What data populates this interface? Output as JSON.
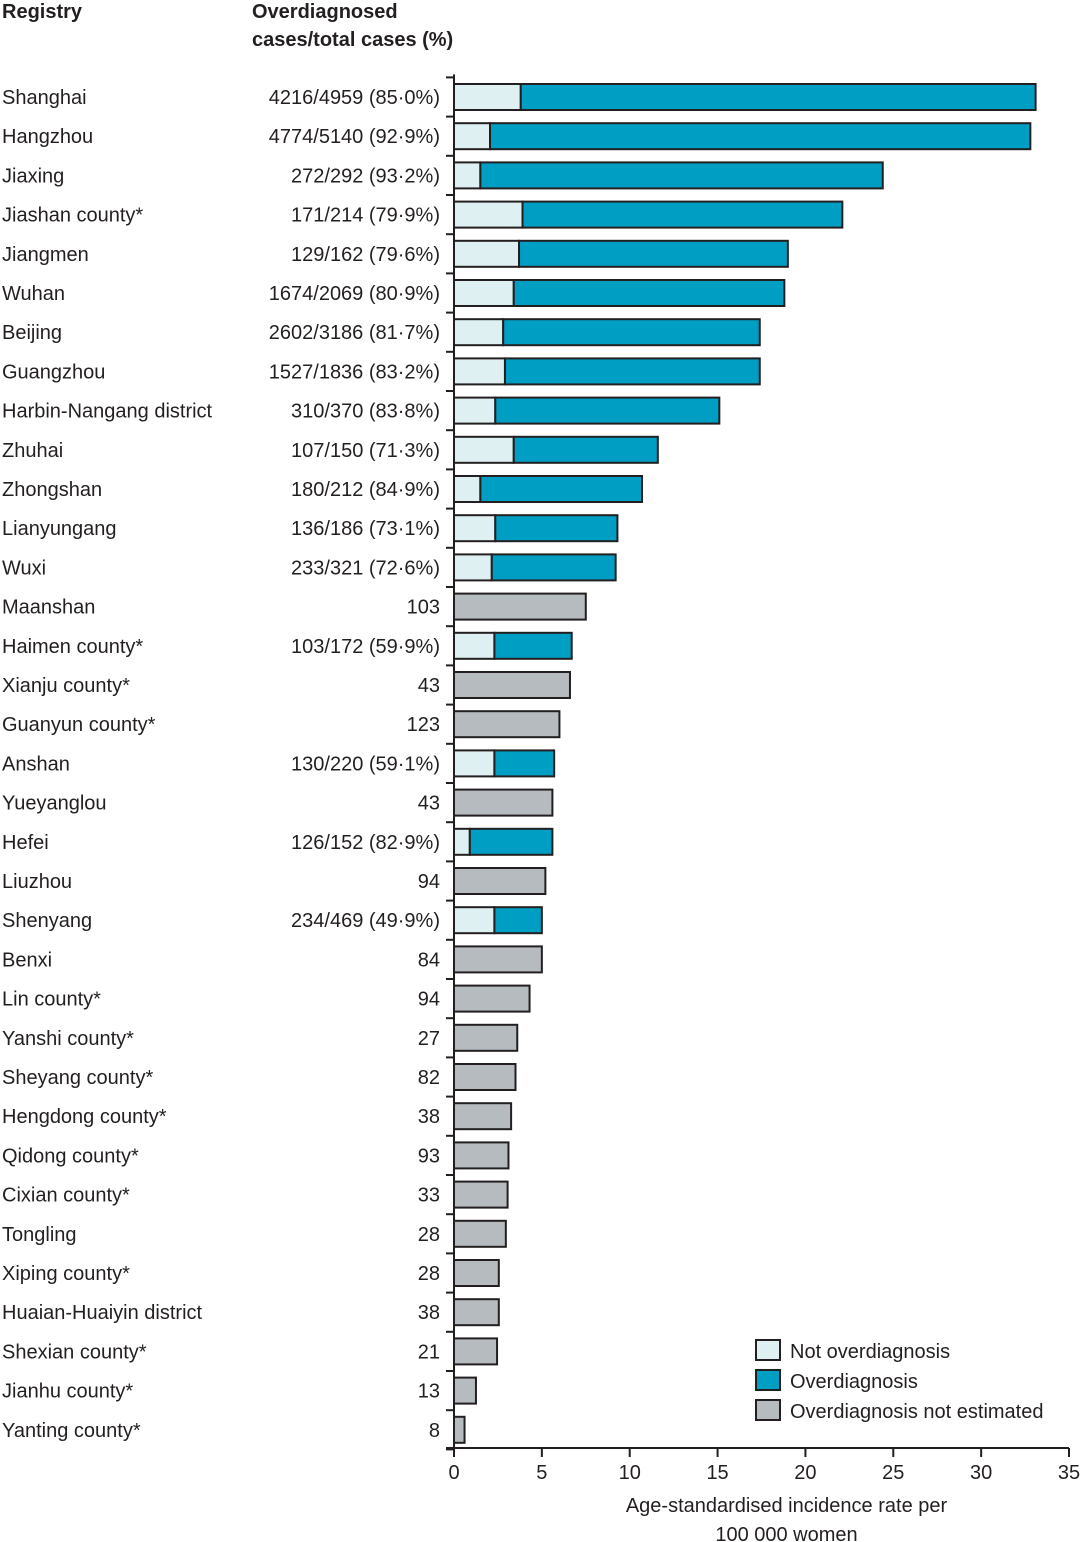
{
  "headers": {
    "registry": "Registry",
    "cases_line1": "Overdiagnosed",
    "cases_line2": "cases/total cases (%)"
  },
  "colors": {
    "not_overdiagnosis": "#dff0f3",
    "overdiagnosis": "#009ec3",
    "not_estimated": "#b6bbbf",
    "outline": "#231f20"
  },
  "chart_data": {
    "type": "bar",
    "orientation": "horizontal",
    "stacked": true,
    "title": "",
    "xlabel": "Age-standardised incidence rate per 100 000 women",
    "xlabel_lines": [
      "Age-standardised incidence rate per",
      "100 000 women"
    ],
    "ylabel": "Registry",
    "xlim": [
      0,
      35
    ],
    "xticks": [
      0,
      5,
      10,
      15,
      20,
      25,
      30,
      35
    ],
    "grid": false,
    "legend_position": "bottom-right",
    "legend": [
      {
        "key": "not_overdiagnosis",
        "label": "Not overdiagnosis"
      },
      {
        "key": "overdiagnosis",
        "label": "Overdiagnosis"
      },
      {
        "key": "not_estimated",
        "label": "Overdiagnosis not estimated"
      }
    ],
    "rows": [
      {
        "registry": "Shanghai",
        "cases": "4216/4959 (85·0%)",
        "not_overdiagnosis": 3.8,
        "overdiagnosis": 29.3,
        "not_estimated": null
      },
      {
        "registry": "Hangzhou",
        "cases": "4774/5140 (92·9%)",
        "not_overdiagnosis": 2.05,
        "overdiagnosis": 30.75,
        "not_estimated": null
      },
      {
        "registry": "Jiaxing",
        "cases": "272/292 (93·2%)",
        "not_overdiagnosis": 1.5,
        "overdiagnosis": 22.9,
        "not_estimated": null
      },
      {
        "registry": "Jiashan county*",
        "cases": "171/214 (79·9%)",
        "not_overdiagnosis": 3.9,
        "overdiagnosis": 18.2,
        "not_estimated": null
      },
      {
        "registry": "Jiangmen",
        "cases": "129/162 (79·6%)",
        "not_overdiagnosis": 3.7,
        "overdiagnosis": 15.3,
        "not_estimated": null
      },
      {
        "registry": "Wuhan",
        "cases": "1674/2069 (80·9%)",
        "not_overdiagnosis": 3.4,
        "overdiagnosis": 15.4,
        "not_estimated": null
      },
      {
        "registry": "Beijing",
        "cases": "2602/3186 (81·7%)",
        "not_overdiagnosis": 2.8,
        "overdiagnosis": 14.6,
        "not_estimated": null
      },
      {
        "registry": "Guangzhou",
        "cases": "1527/1836 (83·2%)",
        "not_overdiagnosis": 2.9,
        "overdiagnosis": 14.5,
        "not_estimated": null
      },
      {
        "registry": "Harbin-Nangang district",
        "cases": "310/370 (83·8%)",
        "not_overdiagnosis": 2.35,
        "overdiagnosis": 12.75,
        "not_estimated": null
      },
      {
        "registry": "Zhuhai",
        "cases": "107/150 (71·3%)",
        "not_overdiagnosis": 3.4,
        "overdiagnosis": 8.2,
        "not_estimated": null
      },
      {
        "registry": "Zhongshan",
        "cases": "180/212 (84·9%)",
        "not_overdiagnosis": 1.5,
        "overdiagnosis": 9.2,
        "not_estimated": null
      },
      {
        "registry": "Lianyungang",
        "cases": "136/186 (73·1%)",
        "not_overdiagnosis": 2.35,
        "overdiagnosis": 6.95,
        "not_estimated": null
      },
      {
        "registry": "Wuxi",
        "cases": "233/321 (72·6%)",
        "not_overdiagnosis": 2.15,
        "overdiagnosis": 7.05,
        "not_estimated": null
      },
      {
        "registry": "Maanshan",
        "cases": "103",
        "not_overdiagnosis": null,
        "overdiagnosis": null,
        "not_estimated": 7.5
      },
      {
        "registry": "Haimen county*",
        "cases": "103/172 (59·9%)",
        "not_overdiagnosis": 2.3,
        "overdiagnosis": 4.4,
        "not_estimated": null
      },
      {
        "registry": "Xianju county*",
        "cases": "43",
        "not_overdiagnosis": null,
        "overdiagnosis": null,
        "not_estimated": 6.6
      },
      {
        "registry": "Guanyun county*",
        "cases": "123",
        "not_overdiagnosis": null,
        "overdiagnosis": null,
        "not_estimated": 6.0
      },
      {
        "registry": "Anshan",
        "cases": "130/220 (59·1%)",
        "not_overdiagnosis": 2.3,
        "overdiagnosis": 3.4,
        "not_estimated": null
      },
      {
        "registry": "Yueyanglou",
        "cases": "43",
        "not_overdiagnosis": null,
        "overdiagnosis": null,
        "not_estimated": 5.6
      },
      {
        "registry": "Hefei",
        "cases": "126/152 (82·9%)",
        "not_overdiagnosis": 0.9,
        "overdiagnosis": 4.7,
        "not_estimated": null
      },
      {
        "registry": "Liuzhou",
        "cases": "94",
        "not_overdiagnosis": null,
        "overdiagnosis": null,
        "not_estimated": 5.2
      },
      {
        "registry": "Shenyang",
        "cases": "234/469 (49·9%)",
        "not_overdiagnosis": 2.3,
        "overdiagnosis": 2.7,
        "not_estimated": null
      },
      {
        "registry": "Benxi",
        "cases": "84",
        "not_overdiagnosis": null,
        "overdiagnosis": null,
        "not_estimated": 5.0
      },
      {
        "registry": "Lin county*",
        "cases": "94",
        "not_overdiagnosis": null,
        "overdiagnosis": null,
        "not_estimated": 4.3
      },
      {
        "registry": "Yanshi county*",
        "cases": "27",
        "not_overdiagnosis": null,
        "overdiagnosis": null,
        "not_estimated": 3.6
      },
      {
        "registry": "Sheyang county*",
        "cases": "82",
        "not_overdiagnosis": null,
        "overdiagnosis": null,
        "not_estimated": 3.5
      },
      {
        "registry": "Hengdong county*",
        "cases": "38",
        "not_overdiagnosis": null,
        "overdiagnosis": null,
        "not_estimated": 3.25
      },
      {
        "registry": "Qidong county*",
        "cases": "93",
        "not_overdiagnosis": null,
        "overdiagnosis": null,
        "not_estimated": 3.1
      },
      {
        "registry": "Cixian county*",
        "cases": "33",
        "not_overdiagnosis": null,
        "overdiagnosis": null,
        "not_estimated": 3.05
      },
      {
        "registry": "Tongling",
        "cases": "28",
        "not_overdiagnosis": null,
        "overdiagnosis": null,
        "not_estimated": 2.95
      },
      {
        "registry": "Xiping county*",
        "cases": "28",
        "not_overdiagnosis": null,
        "overdiagnosis": null,
        "not_estimated": 2.55
      },
      {
        "registry": "Huaian-Huaiyin district",
        "cases": "38",
        "not_overdiagnosis": null,
        "overdiagnosis": null,
        "not_estimated": 2.55
      },
      {
        "registry": "Shexian county*",
        "cases": "21",
        "not_overdiagnosis": null,
        "overdiagnosis": null,
        "not_estimated": 2.45
      },
      {
        "registry": "Jianhu county*",
        "cases": "13",
        "not_overdiagnosis": null,
        "overdiagnosis": null,
        "not_estimated": 1.25
      },
      {
        "registry": "Yanting county*",
        "cases": "8",
        "not_overdiagnosis": null,
        "overdiagnosis": null,
        "not_estimated": 0.6
      }
    ]
  }
}
